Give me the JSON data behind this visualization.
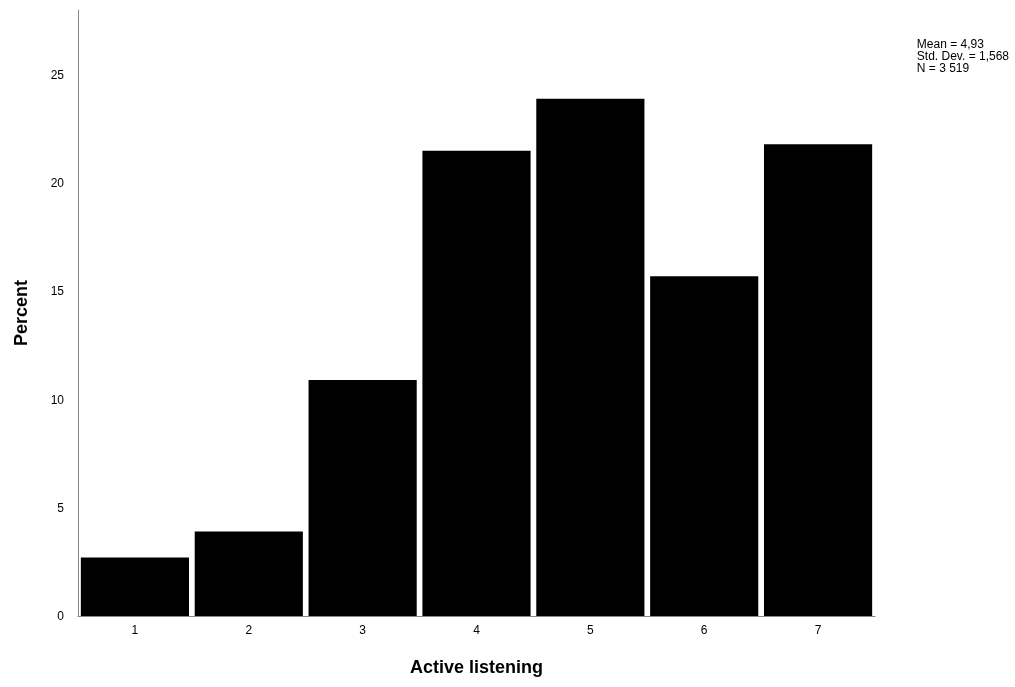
{
  "chart_data": {
    "type": "bar",
    "categories": [
      "1",
      "2",
      "3",
      "4",
      "5",
      "6",
      "7"
    ],
    "values": [
      2.7,
      3.9,
      10.9,
      21.5,
      23.9,
      15.7,
      21.8
    ],
    "color": "#000000",
    "xlabel": "Active listening",
    "ylabel": "Percent",
    "ylim": [
      0,
      28
    ],
    "yticks": [
      0,
      5,
      10,
      15,
      20,
      25
    ],
    "grid": false,
    "annotations": [
      "Mean = 4,93\nStd. Dev. = 1,568\nN = 3 519"
    ]
  }
}
